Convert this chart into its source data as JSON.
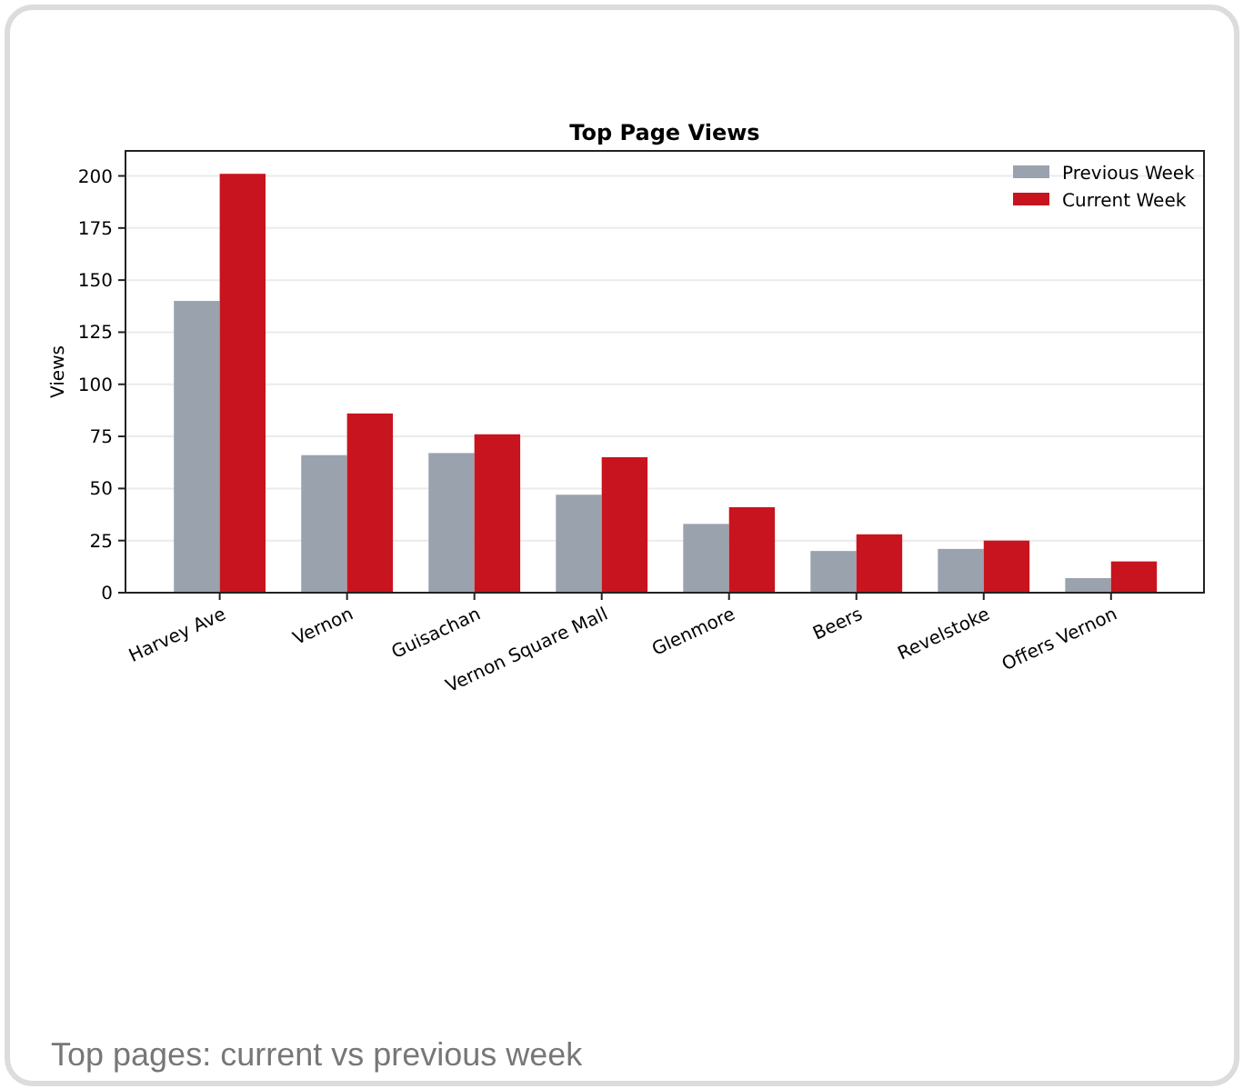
{
  "chart_data": {
    "type": "bar",
    "title": "Top Page Views",
    "ylabel": "Views",
    "categories": [
      "Harvey Ave",
      "Vernon",
      "Guisachan",
      "Vernon Square Mall",
      "Glenmore",
      "Beers",
      "Revelstoke",
      "Offers Vernon"
    ],
    "series": [
      {
        "name": "Previous Week",
        "color": "#9aa2ad",
        "values": [
          140,
          66,
          67,
          47,
          33,
          20,
          21,
          7
        ]
      },
      {
        "name": "Current Week",
        "color": "#c8141e",
        "values": [
          201,
          86,
          76,
          65,
          41,
          28,
          25,
          15
        ]
      }
    ],
    "ylim": [
      0,
      212
    ],
    "yticks": [
      0,
      25,
      50,
      75,
      100,
      125,
      150,
      175,
      200
    ],
    "grid": "y",
    "legend": "top right",
    "annotations": [
      "Top pages: current vs previous week"
    ]
  }
}
